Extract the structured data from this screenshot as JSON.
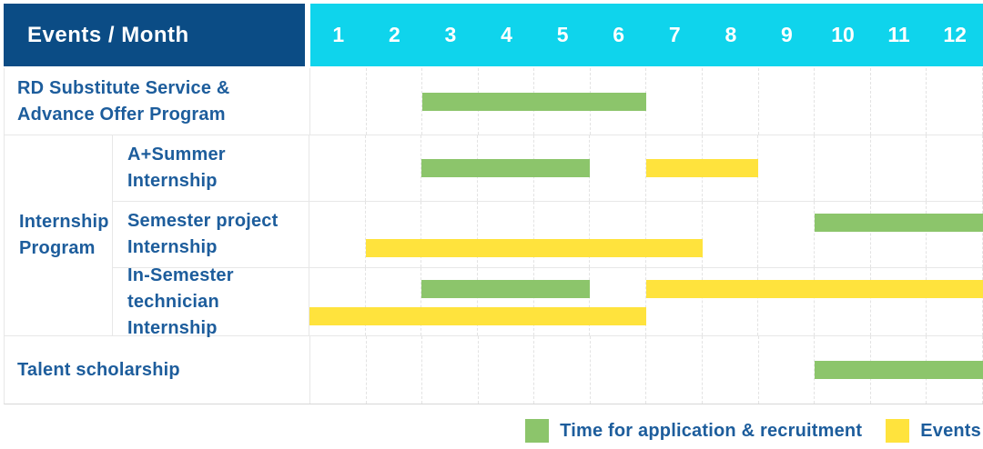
{
  "header": {
    "corner_label": "Events / Month"
  },
  "colors": {
    "header_bg": "#0b4c85",
    "months_bg": "#0fd4ec",
    "header_text": "#ffffff",
    "label_text": "#1d5d9c",
    "recruitment": "#8cc56b",
    "events": "#ffe33d",
    "grid": "#e7e7e7",
    "outer_border": "#d6d6d6"
  },
  "legend": [
    {
      "key": "recruitment",
      "label": "Time for application & recruitment",
      "color": "#8cc56b"
    },
    {
      "key": "events",
      "label": "Events",
      "color": "#ffe33d"
    }
  ],
  "chart_data": {
    "type": "gantt",
    "title": "Events / Month",
    "x_axis": {
      "label": "Month",
      "ticks": [
        "1",
        "2",
        "3",
        "4",
        "5",
        "6",
        "7",
        "8",
        "9",
        "10",
        "11",
        "12"
      ],
      "range": [
        1,
        12
      ]
    },
    "grid": "vertical-dashed",
    "legend_position": "bottom-right",
    "group_label": "Internship Program",
    "group_label_display": "Internship\nProgram",
    "series_legend": {
      "recruitment": "Time for application & recruitment",
      "events": "Events"
    },
    "rows": [
      {
        "label": "RD Substitute Service & Advance Offer Program",
        "label_display": "RD Substitute Service &\nAdvance Offer Program",
        "group": null,
        "bars": [
          {
            "series": "recruitment",
            "start_month": 3,
            "end_month": 6,
            "line": "center"
          }
        ]
      },
      {
        "label": "A+Summer Internship",
        "label_display": "A+Summer\nInternship",
        "group": "Internship Program",
        "bars": [
          {
            "series": "recruitment",
            "start_month": 3,
            "end_month": 5,
            "line": "center"
          },
          {
            "series": "events",
            "start_month": 7,
            "end_month": 8,
            "line": "center"
          }
        ]
      },
      {
        "label": "Semester project Internship",
        "label_display": "Semester project\nInternship",
        "group": "Internship Program",
        "bars": [
          {
            "series": "recruitment",
            "start_month": 10,
            "end_month": 12,
            "line": "top"
          },
          {
            "series": "events",
            "start_month": 2,
            "end_month": 7,
            "line": "bottom"
          }
        ]
      },
      {
        "label": "In-Semester technician Internship",
        "label_display": "In-Semester\ntechnician Internship",
        "group": "Internship Program",
        "bars": [
          {
            "series": "recruitment",
            "start_month": 3,
            "end_month": 5,
            "line": "top"
          },
          {
            "series": "events",
            "start_month": 7,
            "end_month": 12,
            "line": "top"
          },
          {
            "series": "events",
            "start_month": 1,
            "end_month": 6,
            "line": "bottom"
          }
        ]
      },
      {
        "label": "Talent scholarship",
        "label_display": "Talent scholarship",
        "group": null,
        "bars": [
          {
            "series": "recruitment",
            "start_month": 10,
            "end_month": 12,
            "line": "center"
          }
        ]
      }
    ]
  }
}
